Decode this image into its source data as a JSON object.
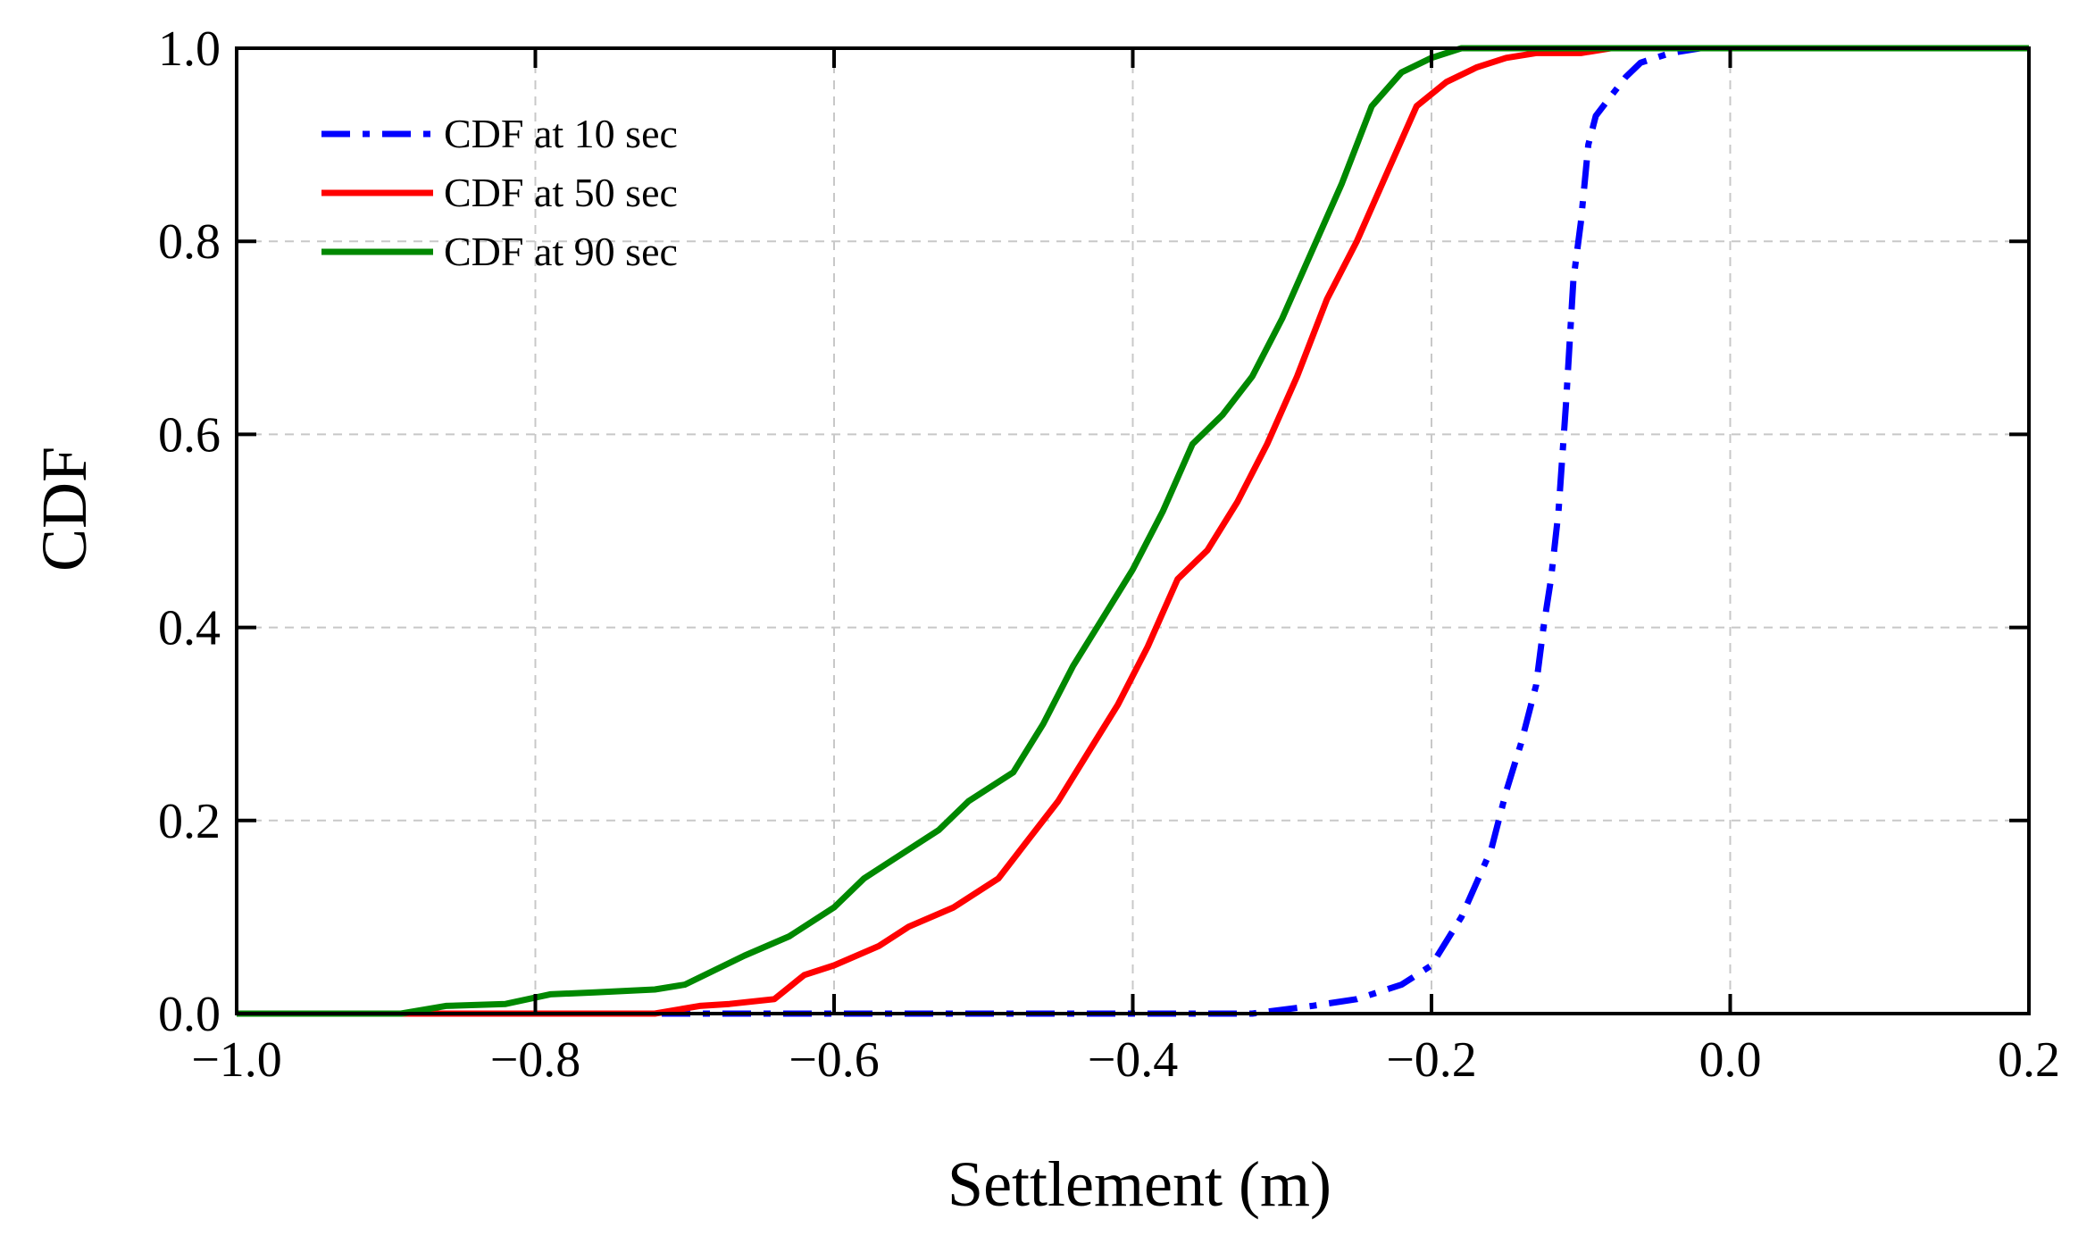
{
  "chart_data": {
    "type": "line",
    "title": "",
    "xlabel": "Settlement (m)",
    "ylabel": "CDF",
    "xlim": [
      -1.0,
      0.2
    ],
    "ylim": [
      0.0,
      1.0
    ],
    "xticks": [
      -1.0,
      -0.8,
      -0.6,
      -0.4,
      -0.2,
      0.0,
      0.2
    ],
    "xtick_labels": [
      "−1.0",
      "−0.8",
      "−0.6",
      "−0.4",
      "−0.2",
      "0.0",
      "0.2"
    ],
    "yticks": [
      0.0,
      0.2,
      0.4,
      0.6,
      0.8,
      1.0
    ],
    "ytick_labels": [
      "0.0",
      "0.2",
      "0.4",
      "0.6",
      "0.8",
      "1.0"
    ],
    "grid": true,
    "legend_position": "top-left",
    "series": [
      {
        "name": "CDF at 10 sec",
        "color": "#0000ff",
        "style": "dashdot",
        "x": [
          -1.0,
          -0.7,
          -0.32,
          -0.28,
          -0.25,
          -0.22,
          -0.2,
          -0.18,
          -0.16,
          -0.15,
          -0.14,
          -0.13,
          -0.125,
          -0.12,
          -0.115,
          -0.11,
          -0.105,
          -0.1,
          -0.095,
          -0.09,
          -0.08,
          -0.07,
          -0.06,
          -0.05,
          -0.04,
          -0.02,
          0.0,
          0.2
        ],
        "y": [
          0.0,
          0.0,
          0.0,
          0.008,
          0.015,
          0.03,
          0.05,
          0.1,
          0.17,
          0.23,
          0.28,
          0.34,
          0.4,
          0.45,
          0.52,
          0.63,
          0.76,
          0.82,
          0.9,
          0.93,
          0.95,
          0.97,
          0.985,
          0.99,
          0.995,
          1.0,
          1.0,
          1.0
        ]
      },
      {
        "name": "CDF at 50 sec",
        "color": "#ff0000",
        "style": "solid",
        "x": [
          -1.0,
          -0.72,
          -0.69,
          -0.67,
          -0.64,
          -0.62,
          -0.6,
          -0.57,
          -0.55,
          -0.52,
          -0.49,
          -0.47,
          -0.45,
          -0.43,
          -0.41,
          -0.39,
          -0.37,
          -0.35,
          -0.33,
          -0.31,
          -0.29,
          -0.27,
          -0.25,
          -0.23,
          -0.21,
          -0.19,
          -0.17,
          -0.15,
          -0.13,
          -0.1,
          -0.08,
          -0.05,
          0.2
        ],
        "y": [
          0.0,
          0.0,
          0.008,
          0.01,
          0.015,
          0.04,
          0.05,
          0.07,
          0.09,
          0.11,
          0.14,
          0.18,
          0.22,
          0.27,
          0.32,
          0.38,
          0.45,
          0.48,
          0.53,
          0.59,
          0.66,
          0.74,
          0.8,
          0.87,
          0.94,
          0.965,
          0.98,
          0.99,
          0.995,
          0.995,
          1.0,
          1.0,
          1.0
        ]
      },
      {
        "name": "CDF at 90 sec",
        "color": "#008800",
        "style": "solid",
        "x": [
          -1.0,
          -0.89,
          -0.86,
          -0.82,
          -0.79,
          -0.76,
          -0.72,
          -0.7,
          -0.68,
          -0.66,
          -0.63,
          -0.6,
          -0.58,
          -0.56,
          -0.53,
          -0.51,
          -0.48,
          -0.46,
          -0.44,
          -0.42,
          -0.4,
          -0.38,
          -0.36,
          -0.34,
          -0.32,
          -0.3,
          -0.28,
          -0.26,
          -0.24,
          -0.22,
          -0.2,
          -0.18,
          -0.17,
          0.2
        ],
        "y": [
          0.0,
          0.0,
          0.008,
          0.01,
          0.02,
          0.022,
          0.025,
          0.03,
          0.045,
          0.06,
          0.08,
          0.11,
          0.14,
          0.16,
          0.19,
          0.22,
          0.25,
          0.3,
          0.36,
          0.41,
          0.46,
          0.52,
          0.59,
          0.62,
          0.66,
          0.72,
          0.79,
          0.86,
          0.94,
          0.975,
          0.99,
          1.0,
          1.0,
          1.0
        ]
      }
    ]
  }
}
